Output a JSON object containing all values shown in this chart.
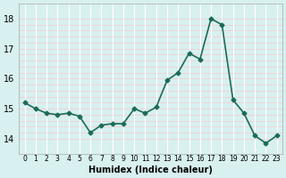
{
  "x": [
    0,
    1,
    2,
    3,
    4,
    5,
    6,
    7,
    8,
    9,
    10,
    11,
    12,
    13,
    14,
    15,
    16,
    17,
    18,
    19,
    20,
    21,
    22,
    23
  ],
  "y": [
    15.2,
    15.0,
    14.85,
    14.8,
    14.85,
    14.75,
    14.2,
    14.45,
    14.5,
    14.5,
    15.0,
    14.85,
    15.05,
    15.95,
    16.2,
    16.85,
    16.65,
    18.0,
    17.8,
    15.3,
    14.85,
    14.1,
    13.85,
    14.1
  ],
  "xlabel": "Humidex (Indice chaleur)",
  "ylim": [
    13.5,
    18.5
  ],
  "xlim": [
    -0.5,
    23.5
  ],
  "yticks": [
    14,
    15,
    16,
    17,
    18
  ],
  "xtick_labels": [
    "0",
    "1",
    "2",
    "3",
    "4",
    "5",
    "6",
    "7",
    "8",
    "9",
    "10",
    "11",
    "12",
    "13",
    "14",
    "15",
    "16",
    "17",
    "18",
    "19",
    "20",
    "21",
    "22",
    "23"
  ],
  "line_color": "#1a6b5a",
  "marker_color": "#1a6b5a",
  "bg_color": "#d8f0f0",
  "grid_color_major": "#ffffff",
  "grid_color_minor": "#f5c8c8"
}
